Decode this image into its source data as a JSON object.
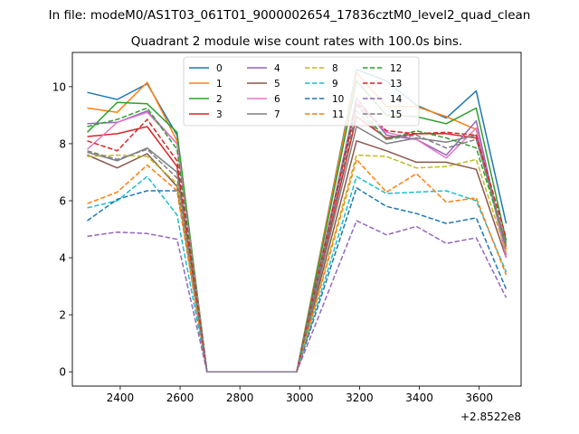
{
  "chart_data": {
    "type": "line",
    "suptitle": "In file: modeM0/AS1T03_061T01_9000002654_17836cztM0_level2_quad_clean",
    "title": "Quadrant 2 module wise count rates with 100.0s bins.",
    "x_offset_label": "+2.8522e8",
    "xlim": [
      2240,
      3740
    ],
    "ylim": [
      -0.5,
      11.2
    ],
    "x_ticks": [
      2400,
      2600,
      2800,
      3000,
      3200,
      3400,
      3600
    ],
    "y_ticks": [
      0,
      2,
      4,
      6,
      8,
      10
    ],
    "legend_position": "top-center",
    "legend_ncol": 4,
    "x": [
      2290,
      2390,
      2490,
      2590,
      2690,
      2790,
      2890,
      2990,
      3190,
      3290,
      3390,
      3490,
      3590,
      3690
    ],
    "series": [
      {
        "name": "0",
        "color": "#1f77b4",
        "dash": false,
        "values": [
          9.8,
          9.55,
          10.1,
          8.3,
          0,
          0,
          0,
          0,
          10.6,
          10.2,
          9.35,
          8.9,
          9.85,
          5.2
        ]
      },
      {
        "name": "1",
        "color": "#ff7f0e",
        "dash": false,
        "values": [
          9.25,
          9.1,
          10.15,
          8.1,
          0,
          0,
          0,
          0,
          10.5,
          9.3,
          9.3,
          8.95,
          8.5,
          4.3
        ]
      },
      {
        "name": "2",
        "color": "#2ca02c",
        "dash": false,
        "values": [
          8.4,
          9.45,
          9.4,
          8.4,
          0,
          0,
          0,
          0,
          10.2,
          9.0,
          8.95,
          8.7,
          9.25,
          4.6
        ]
      },
      {
        "name": "3",
        "color": "#d62728",
        "dash": false,
        "values": [
          8.25,
          8.35,
          8.6,
          7.2,
          0,
          0,
          0,
          0,
          8.95,
          8.2,
          8.35,
          8.35,
          8.2,
          4.4
        ]
      },
      {
        "name": "4",
        "color": "#9467bd",
        "dash": false,
        "values": [
          8.7,
          8.75,
          9.15,
          8.0,
          0,
          0,
          0,
          0,
          9.6,
          8.3,
          8.15,
          7.6,
          8.8,
          4.1
        ]
      },
      {
        "name": "5",
        "color": "#8c564b",
        "dash": false,
        "values": [
          7.6,
          7.15,
          7.65,
          6.5,
          0,
          0,
          0,
          0,
          8.1,
          7.75,
          7.35,
          7.35,
          7.1,
          4.0
        ]
      },
      {
        "name": "6",
        "color": "#e377c2",
        "dash": false,
        "values": [
          7.8,
          8.75,
          9.1,
          8.0,
          0,
          0,
          0,
          0,
          9.4,
          8.4,
          8.15,
          7.5,
          8.55,
          4.0
        ]
      },
      {
        "name": "7",
        "color": "#7f7f7f",
        "dash": false,
        "values": [
          7.7,
          7.4,
          7.85,
          7.0,
          0,
          0,
          0,
          0,
          8.6,
          8.0,
          8.2,
          8.05,
          8.3,
          4.4
        ]
      },
      {
        "name": "8",
        "color": "#bcbd22",
        "dash": true,
        "values": [
          7.55,
          7.6,
          7.55,
          6.6,
          0,
          0,
          0,
          0,
          7.6,
          7.55,
          7.15,
          7.2,
          7.45,
          4.2
        ]
      },
      {
        "name": "9",
        "color": "#17becf",
        "dash": true,
        "values": [
          5.75,
          6.0,
          6.85,
          5.5,
          0,
          0,
          0,
          0,
          6.85,
          6.25,
          6.3,
          6.35,
          6.0,
          3.5
        ]
      },
      {
        "name": "10",
        "color": "#1f77b4",
        "dash": true,
        "values": [
          5.3,
          6.05,
          6.35,
          6.35,
          0,
          0,
          0,
          0,
          6.45,
          5.8,
          5.55,
          5.2,
          5.4,
          2.9
        ]
      },
      {
        "name": "11",
        "color": "#ff7f0e",
        "dash": true,
        "values": [
          5.9,
          6.3,
          7.25,
          6.35,
          0,
          0,
          0,
          0,
          7.45,
          6.3,
          6.95,
          5.95,
          6.1,
          3.4
        ]
      },
      {
        "name": "12",
        "color": "#2ca02c",
        "dash": true,
        "values": [
          8.6,
          8.85,
          9.25,
          7.8,
          0,
          0,
          0,
          0,
          9.35,
          8.15,
          8.45,
          8.2,
          7.85,
          4.5
        ]
      },
      {
        "name": "13",
        "color": "#d62728",
        "dash": true,
        "values": [
          8.1,
          7.75,
          8.85,
          7.4,
          0,
          0,
          0,
          0,
          9.45,
          8.45,
          8.35,
          8.4,
          8.3,
          4.7
        ]
      },
      {
        "name": "14",
        "color": "#9467bd",
        "dash": true,
        "values": [
          4.75,
          4.9,
          4.85,
          4.65,
          0,
          0,
          0,
          0,
          5.3,
          4.8,
          5.1,
          4.5,
          4.7,
          2.6
        ]
      },
      {
        "name": "15",
        "color": "#7f7f7f",
        "dash": true,
        "values": [
          7.75,
          7.45,
          7.8,
          6.8,
          0,
          0,
          0,
          0,
          9.15,
          8.15,
          8.3,
          7.85,
          8.15,
          4.5
        ]
      }
    ]
  }
}
